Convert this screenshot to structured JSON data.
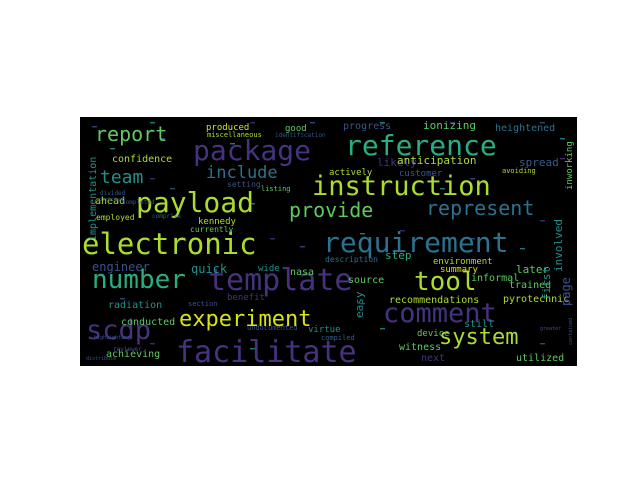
{
  "colors": {
    "background": "#000000",
    "purple": "#46327e",
    "indigo": "#3b528b",
    "blue": "#365c8d",
    "steel": "#2c728e",
    "teal": "#21918c",
    "green": "#28ae80",
    "lime": "#5ec962",
    "yellowgreen": "#addc30",
    "yellow": "#d8e219",
    "darkpurple": "#440154"
  },
  "words": [
    {
      "text": "facilitate",
      "color": "purple",
      "size": 30
    },
    {
      "text": "requirement",
      "color": "steel",
      "size": 28
    },
    {
      "text": "template",
      "color": "purple",
      "size": 30
    },
    {
      "text": "electronic",
      "color": "yellowgreen",
      "size": 29
    },
    {
      "text": "package",
      "color": "purple",
      "size": 28
    },
    {
      "text": "reference",
      "color": "green",
      "size": 28
    },
    {
      "text": "instruction",
      "color": "yellowgreen",
      "size": 27
    },
    {
      "text": "payload",
      "color": "yellowgreen",
      "size": 28
    },
    {
      "text": "comment",
      "color": "purple",
      "size": 27
    },
    {
      "text": "number",
      "color": "green",
      "size": 26
    },
    {
      "text": "scdp",
      "color": "purple",
      "size": 27
    },
    {
      "text": "tool",
      "color": "yellowgreen",
      "size": 26
    },
    {
      "text": "experiment",
      "color": "yellow",
      "size": 22
    },
    {
      "text": "system",
      "color": "yellowgreen",
      "size": 22
    },
    {
      "text": "report",
      "color": "lime",
      "size": 20
    },
    {
      "text": "provide",
      "color": "lime",
      "size": 20
    },
    {
      "text": "represent",
      "color": "steel",
      "size": 20
    },
    {
      "text": "team",
      "color": "teal",
      "size": 18
    },
    {
      "text": "include",
      "color": "steel",
      "size": 17
    },
    {
      "text": "engineer",
      "color": "indigo",
      "size": 12
    },
    {
      "text": "quick",
      "color": "teal",
      "size": 12
    },
    {
      "text": "radiation",
      "color": "teal",
      "size": 10
    },
    {
      "text": "conducted",
      "color": "lime",
      "size": 10
    },
    {
      "text": "achieving",
      "color": "lime",
      "size": 10
    },
    {
      "text": "kennedy",
      "color": "yellowgreen",
      "size": 9
    },
    {
      "text": "confidence",
      "color": "yellowgreen",
      "size": 10
    },
    {
      "text": "ahead",
      "color": "yellowgreen",
      "size": 10
    },
    {
      "text": "employed",
      "color": "yellowgreen",
      "size": 8
    },
    {
      "text": "currently",
      "color": "lime",
      "size": 8
    },
    {
      "text": "produced",
      "color": "yellow",
      "size": 9
    },
    {
      "text": "miscellaneous",
      "color": "yellowgreen",
      "size": 7
    },
    {
      "text": "good",
      "color": "lime",
      "size": 9
    },
    {
      "text": "progress",
      "color": "indigo",
      "size": 10
    },
    {
      "text": "ionizing",
      "color": "lime",
      "size": 11
    },
    {
      "text": "heightened",
      "color": "steel",
      "size": 10
    },
    {
      "text": "likely",
      "color": "purple",
      "size": 11
    },
    {
      "text": "anticipation",
      "color": "yellowgreen",
      "size": 11
    },
    {
      "text": "actively",
      "color": "yellowgreen",
      "size": 9
    },
    {
      "text": "customer",
      "color": "blue",
      "size": 9
    },
    {
      "text": "spread",
      "color": "blue",
      "size": 11
    },
    {
      "text": "involved",
      "color": "teal",
      "size": 11
    },
    {
      "text": "description",
      "color": "steel",
      "size": 8
    },
    {
      "text": "source",
      "color": "lime",
      "size": 10
    },
    {
      "text": "step",
      "color": "green",
      "size": 11
    },
    {
      "text": "environment",
      "color": "yellowgreen",
      "size": 9
    },
    {
      "text": "informal",
      "color": "lime",
      "size": 10
    },
    {
      "text": "later",
      "color": "lime",
      "size": 11
    },
    {
      "text": "summary",
      "color": "yellow",
      "size": 9
    },
    {
      "text": "pyrotechnic",
      "color": "yellowgreen",
      "size": 10
    },
    {
      "text": "trained",
      "color": "lime",
      "size": 10
    },
    {
      "text": "recommendations",
      "color": "yellowgreen",
      "size": 10
    },
    {
      "text": "easy",
      "color": "teal",
      "size": 11
    },
    {
      "text": "first",
      "color": "teal",
      "size": 11
    },
    {
      "text": "page",
      "color": "indigo",
      "size": 12
    },
    {
      "text": "nasa",
      "color": "lime",
      "size": 10
    },
    {
      "text": "wide",
      "color": "teal",
      "size": 9
    },
    {
      "text": "benefit",
      "color": "purple",
      "size": 9
    },
    {
      "text": "section",
      "color": "indigo",
      "size": 7
    },
    {
      "text": "virtue",
      "color": "teal",
      "size": 9
    },
    {
      "text": "undocumented",
      "color": "indigo",
      "size": 7
    },
    {
      "text": "compiled",
      "color": "blue",
      "size": 7
    },
    {
      "text": "device",
      "color": "lime",
      "size": 9
    },
    {
      "text": "witness",
      "color": "lime",
      "size": 10
    },
    {
      "text": "still",
      "color": "teal",
      "size": 10
    },
    {
      "text": "next",
      "color": "purple",
      "size": 10
    },
    {
      "text": "utilized",
      "color": "lime",
      "size": 10
    },
    {
      "text": "implementation",
      "color": "teal",
      "size": 10
    },
    {
      "text": "setting",
      "color": "indigo",
      "size": 8
    },
    {
      "text": "listing",
      "color": "lime",
      "size": 7
    },
    {
      "text": "identification",
      "color": "indigo",
      "size": 6
    },
    {
      "text": "completed",
      "color": "indigo",
      "size": 6
    },
    {
      "text": "reviewer",
      "color": "indigo",
      "size": 6
    },
    {
      "text": "avoiding",
      "color": "yellowgreen",
      "size": 7
    },
    {
      "text": "inworking",
      "color": "lime",
      "size": 9
    },
    {
      "text": "divided",
      "color": "blue",
      "size": 6
    },
    {
      "text": "comprise",
      "color": "blue",
      "size": 6
    },
    {
      "text": "directed",
      "color": "blue",
      "size": 5
    },
    {
      "text": "highlighting",
      "color": "indigo",
      "size": 5
    },
    {
      "text": "contained",
      "color": "indigo",
      "size": 5
    },
    {
      "text": "distribute",
      "color": "indigo",
      "size": 5
    },
    {
      "text": "greater",
      "color": "indigo",
      "size": 5
    }
  ]
}
